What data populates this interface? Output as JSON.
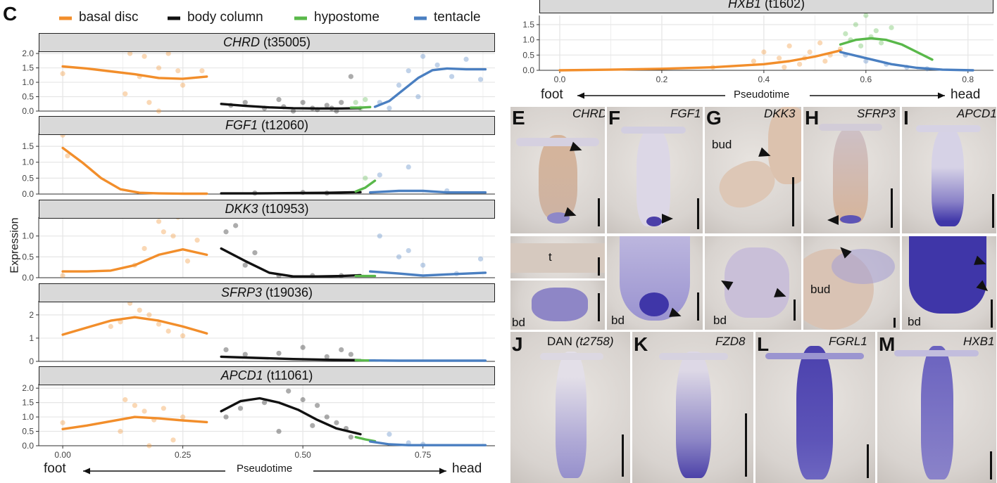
{
  "figure": {
    "panel_c_label": "C",
    "legend": [
      {
        "label": "basal disc",
        "color": "#f28e2b"
      },
      {
        "label": "body column",
        "color": "#111111"
      },
      {
        "label": "hypostome",
        "color": "#59b84a"
      },
      {
        "label": "tentacle",
        "color": "#4a7fc1"
      }
    ],
    "y_axis_label": "Expression",
    "x_axis_label": "Pseudotime",
    "foot_label": "foot",
    "head_label": "head",
    "arrow_left": "←",
    "arrow_right": "→"
  },
  "chart_data": [
    {
      "type": "line",
      "title_gene": "CHRD",
      "title_id": "(t35005)",
      "x_ticks": [
        "0.00",
        "0.25",
        "0.50",
        "0.75"
      ],
      "y_ticks": [
        "0.0",
        "0.5",
        "1.0",
        "1.5",
        "2.0"
      ],
      "xlim": [
        -0.05,
        0.9
      ],
      "ylim": [
        0,
        2.1
      ],
      "series": [
        {
          "name": "basal disc",
          "x": [
            0.0,
            0.05,
            0.1,
            0.15,
            0.2,
            0.25,
            0.3
          ],
          "y": [
            1.55,
            1.48,
            1.38,
            1.28,
            1.15,
            1.12,
            1.2
          ]
        },
        {
          "name": "body column",
          "x": [
            0.33,
            0.38,
            0.43,
            0.48,
            0.53,
            0.58,
            0.62
          ],
          "y": [
            0.25,
            0.18,
            0.13,
            0.1,
            0.09,
            0.09,
            0.1
          ]
        },
        {
          "name": "hypostome",
          "x": [
            0.6,
            0.62,
            0.64
          ],
          "y": [
            0.12,
            0.12,
            0.14
          ]
        },
        {
          "name": "tentacle",
          "x": [
            0.65,
            0.68,
            0.71,
            0.74,
            0.77,
            0.8,
            0.84,
            0.88
          ],
          "y": [
            0.15,
            0.35,
            0.75,
            1.15,
            1.42,
            1.48,
            1.45,
            1.45
          ]
        }
      ],
      "points": {
        "basal disc": [
          [
            0.0,
            1.3
          ],
          [
            0.14,
            2.0
          ],
          [
            0.17,
            1.9
          ],
          [
            0.2,
            1.5
          ],
          [
            0.22,
            2.0
          ],
          [
            0.24,
            1.4
          ],
          [
            0.18,
            0.3
          ],
          [
            0.13,
            0.6
          ],
          [
            0.25,
            0.9
          ],
          [
            0.29,
            1.4
          ],
          [
            0.2,
            0.0
          ],
          [
            0.16,
            1.2
          ]
        ],
        "body column": [
          [
            0.35,
            0.2
          ],
          [
            0.38,
            0.3
          ],
          [
            0.42,
            0.1
          ],
          [
            0.45,
            0.4
          ],
          [
            0.48,
            0.0
          ],
          [
            0.5,
            0.3
          ],
          [
            0.52,
            0.1
          ],
          [
            0.55,
            0.2
          ],
          [
            0.57,
            0.0
          ],
          [
            0.58,
            0.3
          ],
          [
            0.6,
            1.2
          ],
          [
            0.46,
            0.15
          ],
          [
            0.53,
            0.05
          ],
          [
            0.56,
            0.1
          ]
        ],
        "hypostome": [
          [
            0.61,
            0.3
          ],
          [
            0.62,
            0.1
          ],
          [
            0.63,
            0.4
          ]
        ],
        "tentacle": [
          [
            0.66,
            0.3
          ],
          [
            0.7,
            0.9
          ],
          [
            0.72,
            1.4
          ],
          [
            0.75,
            1.9
          ],
          [
            0.78,
            1.6
          ],
          [
            0.81,
            1.2
          ],
          [
            0.84,
            1.8
          ],
          [
            0.87,
            1.1
          ],
          [
            0.68,
            0.1
          ],
          [
            0.74,
            0.5
          ]
        ]
      }
    },
    {
      "type": "line",
      "title_gene": "FGF1",
      "title_id": "(t12060)",
      "x_ticks": [
        "0.00",
        "0.25",
        "0.50",
        "0.75"
      ],
      "y_ticks": [
        "0.0",
        "0.5",
        "1.0",
        "1.5"
      ],
      "xlim": [
        -0.05,
        0.9
      ],
      "ylim": [
        0,
        1.9
      ],
      "series": [
        {
          "name": "basal disc",
          "x": [
            0.0,
            0.04,
            0.08,
            0.12,
            0.16,
            0.2,
            0.25,
            0.3
          ],
          "y": [
            1.45,
            1.0,
            0.5,
            0.15,
            0.04,
            0.02,
            0.01,
            0.01
          ]
        },
        {
          "name": "body column",
          "x": [
            0.33,
            0.4,
            0.48,
            0.55,
            0.62
          ],
          "y": [
            0.02,
            0.02,
            0.03,
            0.04,
            0.06
          ]
        },
        {
          "name": "hypostome",
          "x": [
            0.61,
            0.63,
            0.65
          ],
          "y": [
            0.08,
            0.2,
            0.42
          ]
        },
        {
          "name": "tentacle",
          "x": [
            0.64,
            0.7,
            0.75,
            0.8,
            0.88
          ],
          "y": [
            0.05,
            0.1,
            0.1,
            0.05,
            0.05
          ]
        }
      ],
      "points": {
        "basal disc": [
          [
            0.0,
            1.85
          ],
          [
            0.01,
            1.2
          ]
        ],
        "body column": [
          [
            0.4,
            0.03
          ],
          [
            0.5,
            0.05
          ],
          [
            0.55,
            0.03
          ]
        ],
        "hypostome": [
          [
            0.63,
            0.5
          ]
        ],
        "tentacle": [
          [
            0.72,
            0.85
          ],
          [
            0.66,
            0.6
          ],
          [
            0.8,
            0.1
          ]
        ]
      }
    },
    {
      "type": "line",
      "title_gene": "DKK3",
      "title_id": "(t10953)",
      "x_ticks": [
        "0.00",
        "0.25",
        "0.50",
        "0.75"
      ],
      "y_ticks": [
        "0.0",
        "0.5",
        "1.0"
      ],
      "xlim": [
        -0.05,
        0.9
      ],
      "ylim": [
        0,
        1.45
      ],
      "series": [
        {
          "name": "basal disc",
          "x": [
            0.0,
            0.05,
            0.1,
            0.15,
            0.2,
            0.25,
            0.3
          ],
          "y": [
            0.15,
            0.15,
            0.17,
            0.3,
            0.55,
            0.68,
            0.55
          ]
        },
        {
          "name": "body column",
          "x": [
            0.33,
            0.38,
            0.43,
            0.48,
            0.53,
            0.58,
            0.62
          ],
          "y": [
            0.7,
            0.4,
            0.12,
            0.03,
            0.03,
            0.04,
            0.06
          ]
        },
        {
          "name": "hypostome",
          "x": [
            0.61,
            0.63,
            0.65
          ],
          "y": [
            0.04,
            0.04,
            0.04
          ]
        },
        {
          "name": "tentacle",
          "x": [
            0.64,
            0.7,
            0.75,
            0.8,
            0.88
          ],
          "y": [
            0.15,
            0.1,
            0.05,
            0.08,
            0.12
          ]
        }
      ],
      "points": {
        "basal disc": [
          [
            0.2,
            1.35
          ],
          [
            0.21,
            1.1
          ],
          [
            0.24,
            1.45
          ],
          [
            0.23,
            1.0
          ],
          [
            0.17,
            0.7
          ],
          [
            0.26,
            0.4
          ],
          [
            0.15,
            0.3
          ],
          [
            0.28,
            0.9
          ],
          [
            0.0,
            0.05
          ]
        ],
        "body column": [
          [
            0.34,
            1.1
          ],
          [
            0.36,
            1.25
          ],
          [
            0.38,
            0.3
          ],
          [
            0.4,
            0.6
          ],
          [
            0.45,
            0.05
          ],
          [
            0.52,
            0.05
          ],
          [
            0.58,
            0.05
          ]
        ],
        "tentacle": [
          [
            0.66,
            1.0
          ],
          [
            0.7,
            0.5
          ],
          [
            0.72,
            0.65
          ],
          [
            0.75,
            0.3
          ],
          [
            0.82,
            0.1
          ],
          [
            0.87,
            0.45
          ]
        ]
      }
    },
    {
      "type": "line",
      "title_gene": "SFRP3",
      "title_id": "(t19036)",
      "x_ticks": [
        "0.00",
        "0.25",
        "0.50",
        "0.75"
      ],
      "y_ticks": [
        "0",
        "1",
        "2"
      ],
      "xlim": [
        -0.05,
        0.9
      ],
      "ylim": [
        0,
        2.6
      ],
      "series": [
        {
          "name": "basal disc",
          "x": [
            0.0,
            0.05,
            0.1,
            0.15,
            0.2,
            0.25,
            0.3
          ],
          "y": [
            1.15,
            1.45,
            1.75,
            1.9,
            1.75,
            1.5,
            1.2
          ]
        },
        {
          "name": "body column",
          "x": [
            0.33,
            0.4,
            0.48,
            0.55,
            0.62
          ],
          "y": [
            0.2,
            0.15,
            0.1,
            0.07,
            0.05
          ]
        },
        {
          "name": "hypostome",
          "x": [
            0.61,
            0.63,
            0.65
          ],
          "y": [
            0.05,
            0.04,
            0.04
          ]
        },
        {
          "name": "tentacle",
          "x": [
            0.64,
            0.7,
            0.75,
            0.8,
            0.88
          ],
          "y": [
            0.04,
            0.03,
            0.03,
            0.03,
            0.03
          ]
        }
      ],
      "points": {
        "basal disc": [
          [
            0.14,
            2.5
          ],
          [
            0.16,
            2.2
          ],
          [
            0.18,
            2.0
          ],
          [
            0.2,
            1.6
          ],
          [
            0.12,
            1.7
          ],
          [
            0.22,
            1.3
          ],
          [
            0.25,
            1.1
          ],
          [
            0.1,
            1.5
          ]
        ],
        "body column": [
          [
            0.34,
            0.5
          ],
          [
            0.38,
            0.3
          ],
          [
            0.45,
            0.35
          ],
          [
            0.5,
            0.6
          ],
          [
            0.55,
            0.2
          ],
          [
            0.58,
            0.5
          ],
          [
            0.6,
            0.3
          ]
        ]
      }
    },
    {
      "type": "line",
      "title_gene": "APCD1",
      "title_id": "(t11061)",
      "x_ticks": [
        "0.00",
        "0.25",
        "0.50",
        "0.75"
      ],
      "y_ticks": [
        "0.0",
        "0.5",
        "1.0",
        "1.5",
        "2.0"
      ],
      "xlim": [
        -0.05,
        0.9
      ],
      "ylim": [
        0,
        2.15
      ],
      "series": [
        {
          "name": "basal disc",
          "x": [
            0.0,
            0.05,
            0.1,
            0.15,
            0.2,
            0.25,
            0.3
          ],
          "y": [
            0.58,
            0.7,
            0.85,
            1.0,
            0.95,
            0.88,
            0.82
          ]
        },
        {
          "name": "body column",
          "x": [
            0.33,
            0.37,
            0.41,
            0.45,
            0.49,
            0.53,
            0.57,
            0.62
          ],
          "y": [
            1.2,
            1.55,
            1.65,
            1.5,
            1.25,
            0.9,
            0.6,
            0.4
          ]
        },
        {
          "name": "hypostome",
          "x": [
            0.61,
            0.63,
            0.65
          ],
          "y": [
            0.3,
            0.22,
            0.16
          ]
        },
        {
          "name": "tentacle",
          "x": [
            0.64,
            0.68,
            0.72,
            0.76,
            0.8,
            0.88
          ],
          "y": [
            0.15,
            0.05,
            0.02,
            0.02,
            0.02,
            0.02
          ]
        }
      ],
      "points": {
        "basal disc": [
          [
            0.13,
            1.6
          ],
          [
            0.15,
            1.4
          ],
          [
            0.17,
            1.2
          ],
          [
            0.19,
            0.9
          ],
          [
            0.21,
            1.3
          ],
          [
            0.12,
            0.5
          ],
          [
            0.0,
            0.8
          ],
          [
            0.23,
            0.2
          ],
          [
            0.25,
            1.0
          ],
          [
            0.18,
            0.0
          ]
        ],
        "body column": [
          [
            0.34,
            1.0
          ],
          [
            0.37,
            1.3
          ],
          [
            0.42,
            1.5
          ],
          [
            0.47,
            1.9
          ],
          [
            0.5,
            1.6
          ],
          [
            0.53,
            1.4
          ],
          [
            0.55,
            1.0
          ],
          [
            0.57,
            0.8
          ],
          [
            0.59,
            0.6
          ],
          [
            0.6,
            0.3
          ],
          [
            0.45,
            0.5
          ],
          [
            0.52,
            0.7
          ]
        ],
        "tentacle": [
          [
            0.68,
            0.4
          ],
          [
            0.72,
            0.1
          ],
          [
            0.75,
            0.05
          ]
        ]
      }
    },
    {
      "type": "line",
      "title_gene": "HXB1",
      "title_id": "(t1602)",
      "x_ticks": [
        "0.0",
        "0.2",
        "0.4",
        "0.6",
        "0.8"
      ],
      "y_ticks": [
        "0.0",
        "0.5",
        "1.0",
        "1.5"
      ],
      "xlim": [
        -0.04,
        0.85
      ],
      "ylim": [
        0,
        1.8
      ],
      "series": [
        {
          "name": "basal disc",
          "x": [
            0.0,
            0.1,
            0.2,
            0.3,
            0.4,
            0.45,
            0.5,
            0.55
          ],
          "y": [
            0.0,
            0.02,
            0.05,
            0.1,
            0.2,
            0.3,
            0.45,
            0.65
          ]
        },
        {
          "name": "hypostome",
          "x": [
            0.55,
            0.58,
            0.61,
            0.64,
            0.67,
            0.7,
            0.73
          ],
          "y": [
            0.85,
            1.0,
            1.05,
            1.0,
            0.85,
            0.6,
            0.35
          ]
        },
        {
          "name": "tentacle",
          "x": [
            0.55,
            0.6,
            0.65,
            0.7,
            0.75,
            0.81
          ],
          "y": [
            0.6,
            0.4,
            0.2,
            0.08,
            0.02,
            0.0
          ]
        }
      ],
      "points": {
        "basal disc": [
          [
            0.3,
            0.1
          ],
          [
            0.38,
            0.3
          ],
          [
            0.4,
            0.6
          ],
          [
            0.43,
            0.4
          ],
          [
            0.45,
            0.8
          ],
          [
            0.47,
            0.2
          ],
          [
            0.49,
            0.6
          ],
          [
            0.51,
            0.9
          ],
          [
            0.53,
            0.5
          ],
          [
            0.52,
            0.3
          ],
          [
            0.48,
            0.4
          ],
          [
            0.44,
            0.1
          ],
          [
            0.55,
            0.7
          ]
        ],
        "hypostome": [
          [
            0.56,
            1.2
          ],
          [
            0.58,
            1.5
          ],
          [
            0.6,
            1.8
          ],
          [
            0.62,
            1.3
          ],
          [
            0.63,
            0.9
          ],
          [
            0.61,
            1.1
          ],
          [
            0.59,
            0.8
          ],
          [
            0.65,
            1.4
          ],
          [
            0.57,
            1.0
          ]
        ],
        "tentacle": [
          [
            0.56,
            0.5
          ],
          [
            0.6,
            0.3
          ],
          [
            0.64,
            0.2
          ],
          [
            0.68,
            0.1
          ],
          [
            0.72,
            0.05
          ]
        ]
      }
    }
  ],
  "images": {
    "E": {
      "label": "E",
      "gene": "CHRD"
    },
    "F": {
      "label": "F",
      "gene": "FGF1"
    },
    "G": {
      "label": "G",
      "gene": "DKK3",
      "bud": "bud"
    },
    "H": {
      "label": "H",
      "gene": "SFRP3"
    },
    "I": {
      "label": "I",
      "gene": "APCD1"
    },
    "J": {
      "label": "J",
      "gene": "DAN",
      "gene_id": "(t2758)"
    },
    "K": {
      "label": "K",
      "gene": "FZD8"
    },
    "L": {
      "label": "L",
      "gene": "FGRL1"
    },
    "M": {
      "label": "M",
      "gene": "HXB1"
    },
    "annotations": {
      "t": "t",
      "bd": "bd",
      "bud": "bud"
    }
  },
  "image_colors": {
    "bg_light": "#d8d3cf",
    "tissue_blue": "#3f36a8",
    "tissue_tan": "#d6b49a"
  }
}
